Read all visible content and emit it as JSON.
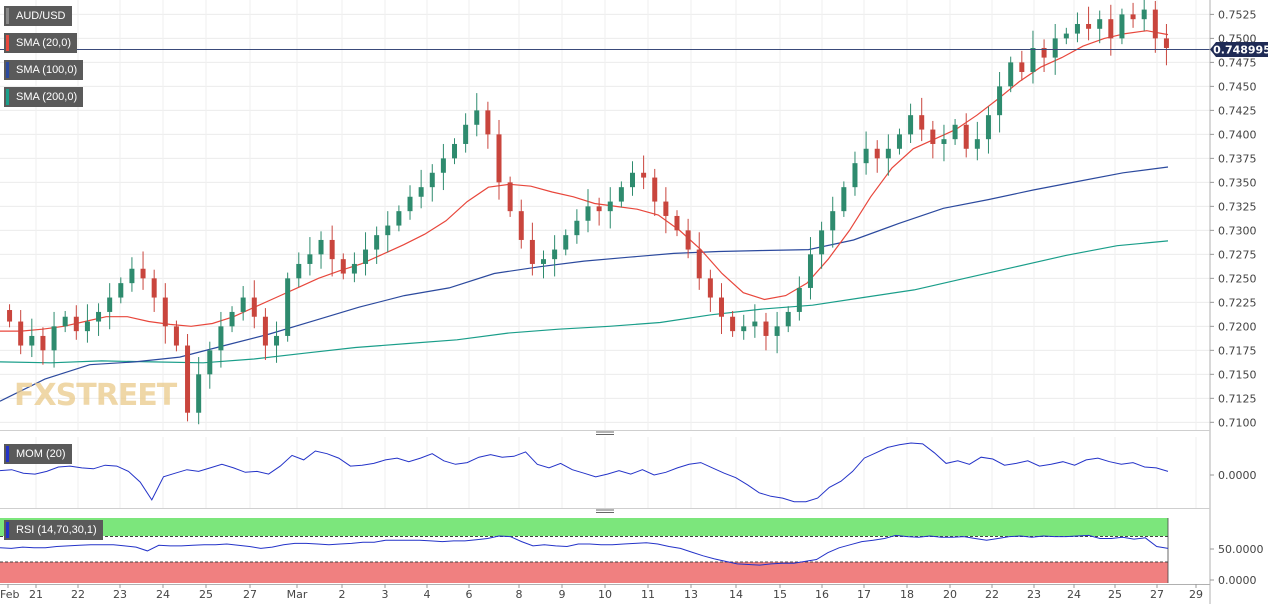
{
  "chart_data": {
    "type": "candlestick",
    "title": "AUD/USD",
    "x_tick_labels": [
      "Feb",
      "21",
      "22",
      "23",
      "24",
      "25",
      "27",
      "Mar",
      "2",
      "3",
      "4",
      "6",
      "8",
      "9",
      "10",
      "11",
      "13",
      "14",
      "15",
      "16",
      "17",
      "18",
      "20",
      "22",
      "23",
      "24",
      "25",
      "27",
      "29"
    ],
    "price_axis": {
      "ticks": [
        "0.7525",
        "0.7500",
        "0.7475",
        "0.7450",
        "0.7425",
        "0.7400",
        "0.7375",
        "0.7350",
        "0.7325",
        "0.7300",
        "0.7275",
        "0.7250",
        "0.7225",
        "0.7200",
        "0.7175",
        "0.7150",
        "0.7125",
        "0.7100"
      ],
      "ylim": [
        0.7092,
        0.754
      ],
      "last_price": "0.748995",
      "last_price_value": 0.748995
    },
    "indicators": {
      "sma20": {
        "label": "SMA (20,0)",
        "color": "#e8473c"
      },
      "sma100": {
        "label": "SMA (100,0)",
        "color": "#2c4a9e"
      },
      "sma200": {
        "label": "SMA (200,0)",
        "color": "#1a9e8a"
      }
    },
    "closes": [
      0.7205,
      0.718,
      0.719,
      0.7175,
      0.72,
      0.721,
      0.7195,
      0.7205,
      0.7215,
      0.723,
      0.7245,
      0.726,
      0.725,
      0.723,
      0.72,
      0.718,
      0.711,
      0.715,
      0.7175,
      0.72,
      0.7215,
      0.723,
      0.721,
      0.718,
      0.719,
      0.725,
      0.7265,
      0.7275,
      0.729,
      0.727,
      0.7255,
      0.7265,
      0.728,
      0.7295,
      0.7305,
      0.732,
      0.7335,
      0.7345,
      0.736,
      0.7375,
      0.739,
      0.741,
      0.7425,
      0.74,
      0.735,
      0.732,
      0.729,
      0.7265,
      0.727,
      0.728,
      0.7295,
      0.731,
      0.7325,
      0.732,
      0.733,
      0.7345,
      0.736,
      0.7355,
      0.733,
      0.7315,
      0.73,
      0.728,
      0.725,
      0.723,
      0.721,
      0.7195,
      0.72,
      0.7205,
      0.719,
      0.72,
      0.7215,
      0.724,
      0.7275,
      0.73,
      0.732,
      0.7345,
      0.737,
      0.7385,
      0.7375,
      0.7385,
      0.74,
      0.742,
      0.7405,
      0.739,
      0.7395,
      0.741,
      0.7385,
      0.7395,
      0.742,
      0.745,
      0.7475,
      0.7465,
      0.749,
      0.748,
      0.75,
      0.7505,
      0.7515,
      0.751,
      0.752,
      0.75,
      0.7525,
      0.752,
      0.753,
      0.75,
      0.749
    ],
    "sma20": [
      0.7195,
      0.7195,
      0.7197,
      0.72,
      0.7205,
      0.721,
      0.721,
      0.7205,
      0.7202,
      0.72,
      0.7203,
      0.721,
      0.722,
      0.723,
      0.724,
      0.725,
      0.7258,
      0.7265,
      0.7275,
      0.7285,
      0.7296,
      0.731,
      0.733,
      0.7345,
      0.7348,
      0.7346,
      0.734,
      0.7335,
      0.7328,
      0.7325,
      0.7322,
      0.7316,
      0.73,
      0.728,
      0.7255,
      0.7235,
      0.7228,
      0.7232,
      0.7245,
      0.727,
      0.73,
      0.7335,
      0.7365,
      0.7385,
      0.7395,
      0.7405,
      0.742,
      0.7437,
      0.7455,
      0.747,
      0.748,
      0.7492,
      0.75,
      0.7505,
      0.7508,
      0.7504
    ],
    "sma100": [
      0.7122,
      0.7145,
      0.716,
      0.7163,
      0.7168,
      0.718,
      0.7192,
      0.7206,
      0.722,
      0.7232,
      0.724,
      0.7255,
      0.7262,
      0.7268,
      0.7272,
      0.7276,
      0.7278,
      0.7279,
      0.728,
      0.729,
      0.7307,
      0.7323,
      0.7332,
      0.7342,
      0.7351,
      0.736,
      0.7366
    ],
    "sma200": [
      0.7163,
      0.7162,
      0.7164,
      0.7163,
      0.7162,
      0.7166,
      0.7172,
      0.7178,
      0.7182,
      0.7186,
      0.7193,
      0.7197,
      0.72,
      0.7204,
      0.7212,
      0.7218,
      0.7222,
      0.723,
      0.7238,
      0.725,
      0.7262,
      0.7274,
      0.7284,
      0.7289
    ]
  },
  "legend": {
    "pair": "AUD/USD",
    "sma20": "SMA (20,0)",
    "sma100": "SMA (100,0)",
    "sma200": "SMA (200,0)"
  },
  "watermark": "FXSTREET",
  "mom": {
    "label": "MOM (20)",
    "ticks": [
      "0.0000"
    ],
    "color": "#2433c8",
    "values": [
      0.0005,
      0.0006,
      0.0002,
      0.0001,
      0.0004,
      0.0009,
      0.001,
      0.0008,
      0.0007,
      0.0011,
      0.001,
      0.0004,
      -0.0008,
      -0.0028,
      -0.0002,
      0.0002,
      0.0006,
      0.0004,
      0.0008,
      0.0012,
      0.0008,
      0.0003,
      0.0004,
      0.0001,
      0.001,
      0.0022,
      0.0017,
      0.0027,
      0.0024,
      0.0019,
      0.001,
      0.0011,
      0.0013,
      0.0017,
      0.0019,
      0.0015,
      0.0019,
      0.0024,
      0.0016,
      0.0012,
      0.0014,
      0.002,
      0.0023,
      0.002,
      0.0021,
      0.0026,
      0.0012,
      0.0008,
      0.0013,
      0.0006,
      0.0002,
      -0.0002,
      0.0001,
      0.0005,
      0.0001,
      0.0006,
      0.0,
      0.0003,
      0.0008,
      0.0012,
      0.0014,
      0.0008,
      0.0002,
      -0.0003,
      -0.0011,
      -0.002,
      -0.0024,
      -0.0026,
      -0.003,
      -0.003,
      -0.0026,
      -0.0014,
      -0.0007,
      0.0004,
      0.0019,
      0.0025,
      0.0031,
      0.0034,
      0.0036,
      0.0035,
      0.0025,
      0.0013,
      0.0016,
      0.0012,
      0.002,
      0.0018,
      0.0011,
      0.0013,
      0.0016,
      0.001,
      0.0012,
      0.0015,
      0.0011,
      0.0017,
      0.0019,
      0.0015,
      0.0012,
      0.0014,
      0.0009,
      0.0008,
      0.0004
    ]
  },
  "rsi": {
    "label": "RSI (14,70,30,1)",
    "ticks": [
      "50.0000",
      "0.0000"
    ],
    "overbought": 70,
    "oversold": 30,
    "color": "#2433c8",
    "overbought_color": "#7ce67c",
    "oversold_color": "#f08080",
    "values": [
      52,
      51,
      53,
      52,
      52,
      54,
      55,
      56,
      57,
      57,
      57,
      55,
      53,
      47,
      56,
      55,
      55,
      56,
      57,
      57,
      58,
      56,
      54,
      51,
      53,
      57,
      59,
      59,
      58,
      57,
      58,
      59,
      61,
      61,
      64,
      64,
      64,
      64,
      63,
      62,
      63,
      63,
      65,
      67,
      71,
      70,
      62,
      55,
      57,
      55,
      54,
      58,
      58,
      57,
      57,
      58,
      59,
      60,
      58,
      54,
      51,
      45,
      39,
      34,
      30,
      26,
      25,
      24,
      26,
      27,
      27,
      30,
      33,
      44,
      52,
      57,
      62,
      64,
      67,
      72,
      70,
      69,
      71,
      69,
      69,
      70,
      67,
      64,
      67,
      70,
      71,
      69,
      71,
      70,
      70,
      71,
      72,
      67,
      67,
      69,
      66,
      68,
      54,
      51
    ]
  }
}
